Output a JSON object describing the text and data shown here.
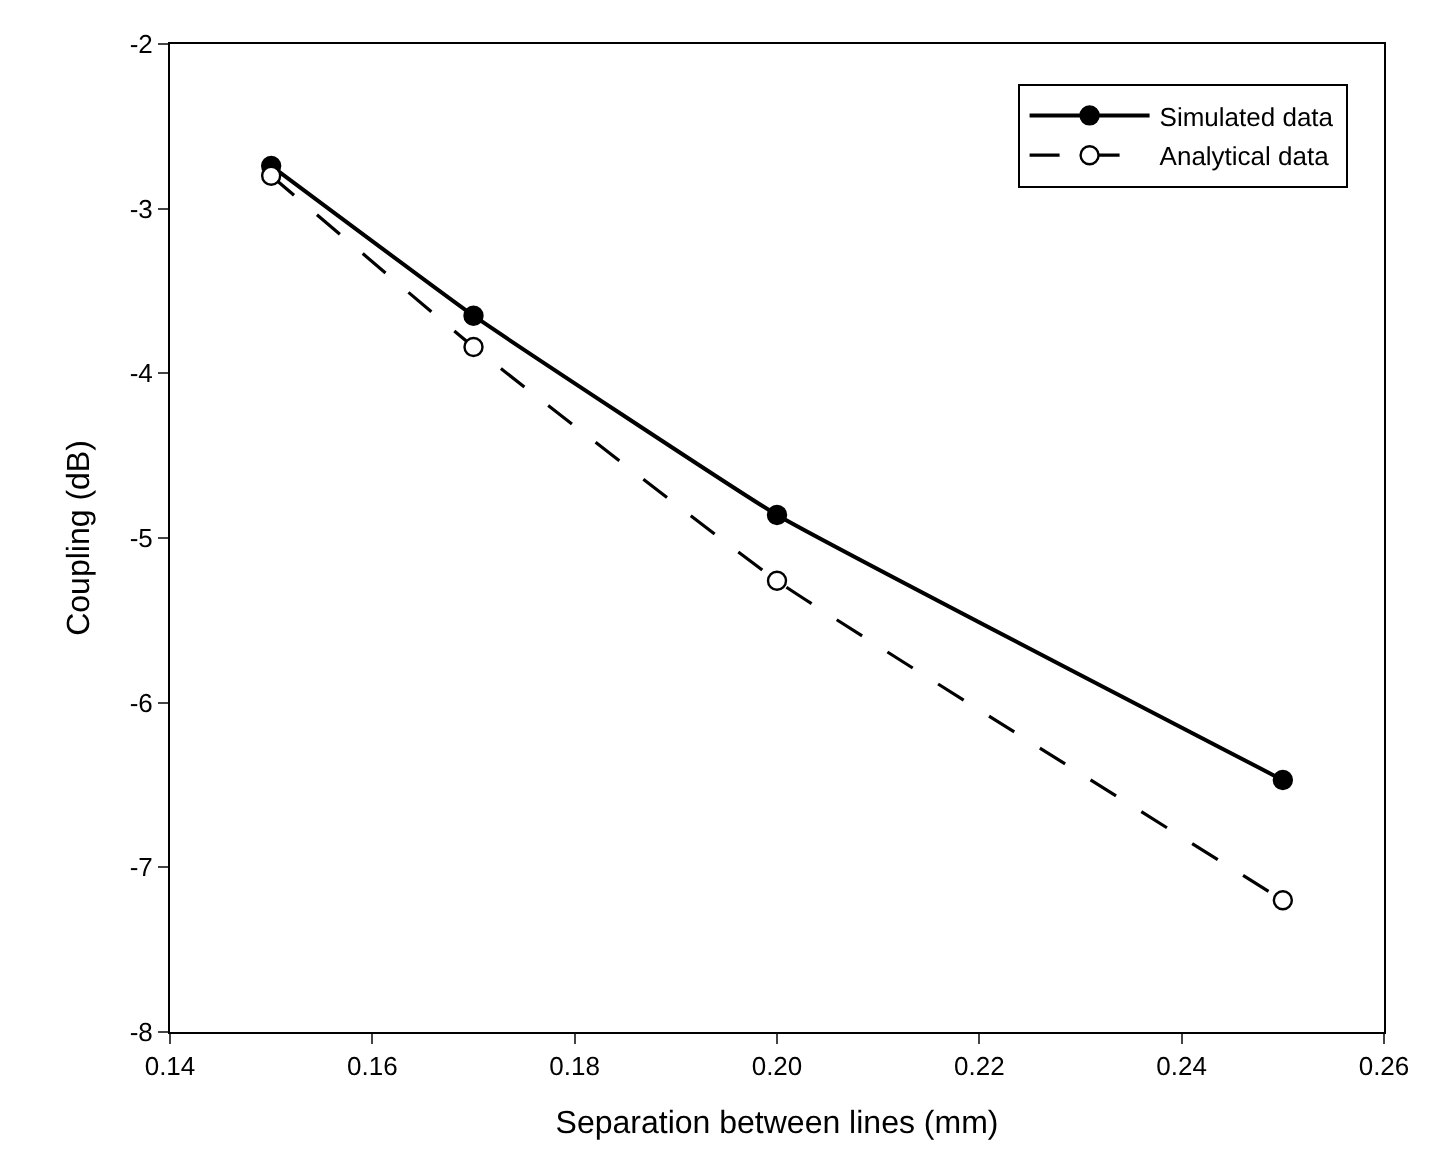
{
  "chart_data": {
    "type": "line",
    "xlabel": "Separation between lines (mm)",
    "ylabel": "Coupling (dB)",
    "x": [
      0.15,
      0.17,
      0.2,
      0.25
    ],
    "series": [
      {
        "name": "Simulated data",
        "color": "#000000",
        "values": [
          -2.74,
          -3.65,
          -4.86,
          -6.47
        ],
        "line_style": "solid",
        "marker": "circle"
      },
      {
        "name": "Analytical data",
        "color": "#000000",
        "values": [
          -2.8,
          -3.84,
          -5.26,
          -7.2
        ],
        "line_style": "dashed",
        "marker": "circle"
      }
    ],
    "xlim": [
      0.14,
      0.26
    ],
    "xticks": [
      {
        "value": 0.14,
        "label": "0.14"
      },
      {
        "value": 0.16,
        "label": "0.16"
      },
      {
        "value": 0.18,
        "label": "0.18"
      },
      {
        "value": 0.2,
        "label": "0.20"
      },
      {
        "value": 0.22,
        "label": "0.22"
      },
      {
        "value": 0.24,
        "label": "0.24"
      },
      {
        "value": 0.26,
        "label": "0.26"
      }
    ],
    "ylim": [
      -8,
      -2
    ],
    "yticks": [
      -8,
      -7,
      -6,
      -5,
      -4,
      -3,
      -2
    ],
    "legend": "top right"
  }
}
